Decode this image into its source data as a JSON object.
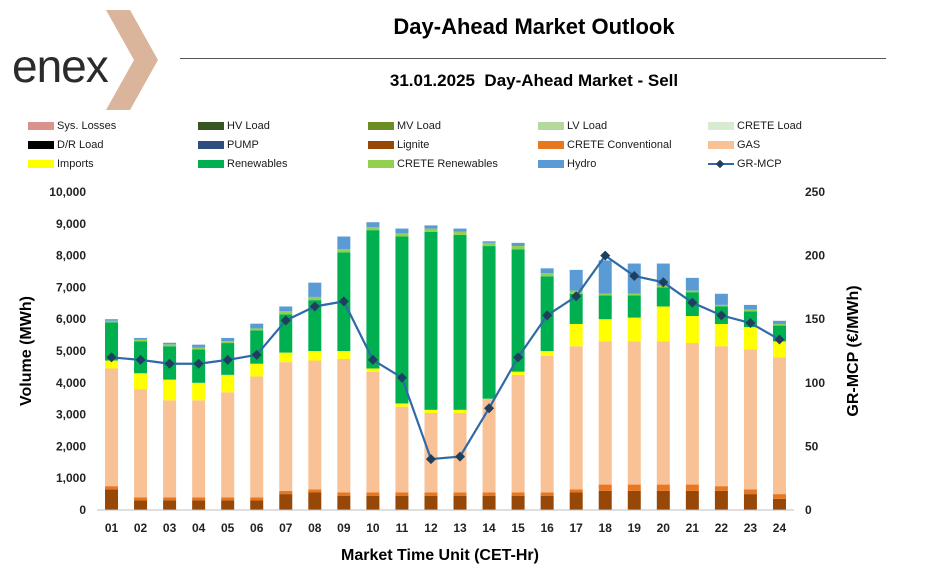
{
  "header": {
    "logo_text": "enex",
    "title": "Day-Ahead Market Outlook",
    "subtitle": "31.01.2025  Day-Ahead Market - Sell"
  },
  "legend": [
    {
      "label": "Sys. Losses",
      "color": "#d9928e"
    },
    {
      "label": "HV Load",
      "color": "#375623"
    },
    {
      "label": "MV Load",
      "color": "#6b8e23"
    },
    {
      "label": "LV Load",
      "color": "#b5d99c"
    },
    {
      "label": "CRETE Load",
      "color": "#d9ead3"
    },
    {
      "label": "D/R Load",
      "color": "#000000"
    },
    {
      "label": "PUMP",
      "color": "#2e4e7e"
    },
    {
      "label": "Lignite",
      "color": "#974706"
    },
    {
      "label": "CRETE Conventional",
      "color": "#e87722"
    },
    {
      "label": "GAS",
      "color": "#f8c196"
    },
    {
      "label": "Imports",
      "color": "#ffff00"
    },
    {
      "label": "Renewables",
      "color": "#00b050"
    },
    {
      "label": "CRETE Renewables",
      "color": "#92d050"
    },
    {
      "label": "Hydro",
      "color": "#5b9bd5"
    },
    {
      "label": "GR-MCP",
      "color": "#1f3f5f",
      "line_color": "#2f6aa6"
    }
  ],
  "chart_data": {
    "type": "bar",
    "stacked": true,
    "categories": [
      "01",
      "02",
      "03",
      "04",
      "05",
      "06",
      "07",
      "08",
      "09",
      "10",
      "11",
      "12",
      "13",
      "14",
      "15",
      "16",
      "17",
      "18",
      "19",
      "20",
      "21",
      "22",
      "23",
      "24"
    ],
    "xlabel": "Market Time Unit (CET-Hr)",
    "ylabel": "Volume (MWh)",
    "y2label": "GR-MCP (€/MWh)",
    "ylim": [
      0,
      10000
    ],
    "y2lim": [
      0,
      250
    ],
    "yticks": [
      "0",
      "1,000",
      "2,000",
      "3,000",
      "4,000",
      "5,000",
      "6,000",
      "7,000",
      "8,000",
      "9,000",
      "10,000"
    ],
    "y2ticks": [
      "0",
      "50",
      "100",
      "150",
      "200",
      "250"
    ],
    "grid": false,
    "legend_position": "top",
    "series": [
      {
        "name": "Lignite",
        "color": "#974706",
        "values": [
          650,
          300,
          300,
          300,
          300,
          300,
          500,
          550,
          450,
          450,
          450,
          450,
          450,
          450,
          450,
          450,
          550,
          600,
          600,
          600,
          600,
          600,
          500,
          350
        ]
      },
      {
        "name": "CRETE Conventional",
        "color": "#e87722",
        "values": [
          100,
          100,
          100,
          100,
          100,
          100,
          100,
          100,
          100,
          100,
          100,
          100,
          100,
          100,
          100,
          100,
          100,
          200,
          200,
          200,
          200,
          150,
          150,
          150
        ]
      },
      {
        "name": "GAS",
        "color": "#f8c196",
        "values": [
          3700,
          3400,
          3050,
          3050,
          3300,
          3800,
          4050,
          4050,
          4200,
          3800,
          2700,
          2500,
          2500,
          2950,
          3700,
          4300,
          4500,
          4500,
          4500,
          4500,
          4450,
          4400,
          4400,
          4300
        ]
      },
      {
        "name": "Imports",
        "color": "#ffff00",
        "values": [
          250,
          500,
          650,
          550,
          550,
          400,
          300,
          300,
          250,
          100,
          100,
          100,
          100,
          0,
          100,
          150,
          700,
          700,
          750,
          1100,
          850,
          700,
          700,
          500
        ]
      },
      {
        "name": "Renewables",
        "color": "#00b050",
        "values": [
          1200,
          1000,
          1050,
          1050,
          1000,
          1050,
          1200,
          1600,
          3100,
          4350,
          5250,
          5600,
          5500,
          4800,
          3850,
          2350,
          950,
          750,
          700,
          600,
          750,
          550,
          500,
          500
        ]
      },
      {
        "name": "CRETE Renewables",
        "color": "#92d050",
        "values": [
          50,
          60,
          60,
          60,
          60,
          60,
          100,
          100,
          100,
          100,
          100,
          100,
          100,
          100,
          100,
          100,
          100,
          50,
          50,
          50,
          50,
          50,
          50,
          50
        ]
      },
      {
        "name": "Hydro",
        "color": "#5b9bd5",
        "values": [
          50,
          50,
          50,
          90,
          100,
          150,
          150,
          450,
          400,
          150,
          150,
          100,
          100,
          50,
          100,
          150,
          650,
          1050,
          950,
          700,
          400,
          350,
          150,
          100
        ]
      }
    ],
    "line": {
      "name": "GR-MCP",
      "axis": "right",
      "values": [
        120,
        118,
        115,
        115,
        118,
        122,
        149,
        160,
        164,
        118,
        104,
        40,
        42,
        80,
        120,
        153,
        168,
        200,
        184,
        179,
        163,
        153,
        147,
        134
      ]
    }
  }
}
